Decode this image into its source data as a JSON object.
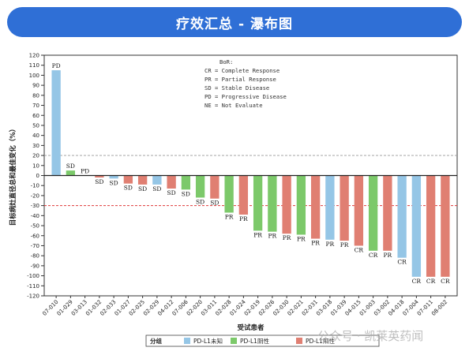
{
  "header": {
    "title": "疗效汇总 - 瀑布图"
  },
  "watermark": {
    "text": "公众号 · 凯莱英药闻"
  },
  "chart_data": {
    "type": "bar",
    "ylabel": "目标病灶直径总和最佳变化（%）",
    "xlabel": "受试患者",
    "ylim": [
      -120,
      120
    ],
    "yticks": [
      -120,
      -110,
      -100,
      -90,
      -80,
      -70,
      -60,
      -50,
      -40,
      -30,
      -20,
      -10,
      0,
      10,
      20,
      30,
      40,
      50,
      60,
      70,
      80,
      90,
      100,
      110,
      120
    ],
    "reference_lines": [
      {
        "y": 20,
        "color": "#999999",
        "style": "dashed"
      },
      {
        "y": -30,
        "color": "#e03a3a",
        "style": "dashed"
      }
    ],
    "legend_box": {
      "lines": [
        "BoR:",
        "CR = Complete Response",
        "PR = Partial Response",
        "SD = Stable Disease",
        "PD = Progressive Disease",
        "NE = Not Evaluate"
      ]
    },
    "legend": {
      "title": "分组",
      "position": "bottom",
      "items": [
        {
          "group": "unknown",
          "label": "PD-L1未知",
          "color": "#95c6e6"
        },
        {
          "group": "negative",
          "label": "PD-L1阴性",
          "color": "#7cc96a"
        },
        {
          "group": "positive",
          "label": "PD-L1阳性",
          "color": "#e07f72"
        }
      ]
    },
    "categories": [
      "07-010",
      "01-029",
      "03-013",
      "01-032",
      "02-033",
      "01-027",
      "02-025",
      "02-029",
      "04-012",
      "07-006",
      "02-020",
      "03-011",
      "02-028",
      "01-024",
      "02-019",
      "02-026",
      "02-030",
      "02-021",
      "02-031",
      "03-018",
      "01-039",
      "04-015",
      "01-003",
      "03-002",
      "04-018",
      "07-004",
      "07-011",
      "08-002"
    ],
    "values": [
      105,
      5,
      0,
      -2,
      -3,
      -8,
      -9,
      -9,
      -13,
      -14,
      -22,
      -23,
      -37,
      -39,
      -55,
      -56,
      -58,
      -59,
      -63,
      -64,
      -65,
      -70,
      -75,
      -75,
      -82,
      -101,
      -101,
      -101
    ],
    "groups": [
      "unknown",
      "negative",
      "positive",
      "positive",
      "unknown",
      "positive",
      "positive",
      "unknown",
      "positive",
      "negative",
      "negative",
      "positive",
      "negative",
      "positive",
      "negative",
      "negative",
      "positive",
      "negative",
      "positive",
      "unknown",
      "positive",
      "positive",
      "negative",
      "positive",
      "unknown",
      "unknown",
      "positive",
      "positive"
    ],
    "responses": [
      "PD",
      "SD",
      "PD",
      "SD",
      "SD",
      "SD",
      "SD",
      "SD",
      "SD",
      "SD",
      "SD",
      "SD",
      "PR",
      "PR",
      "PR",
      "PR",
      "PR",
      "PR",
      "PR",
      "PR",
      "PR",
      "CR",
      "CR",
      "PR",
      "CR",
      "CR",
      "CR",
      "CR"
    ]
  }
}
